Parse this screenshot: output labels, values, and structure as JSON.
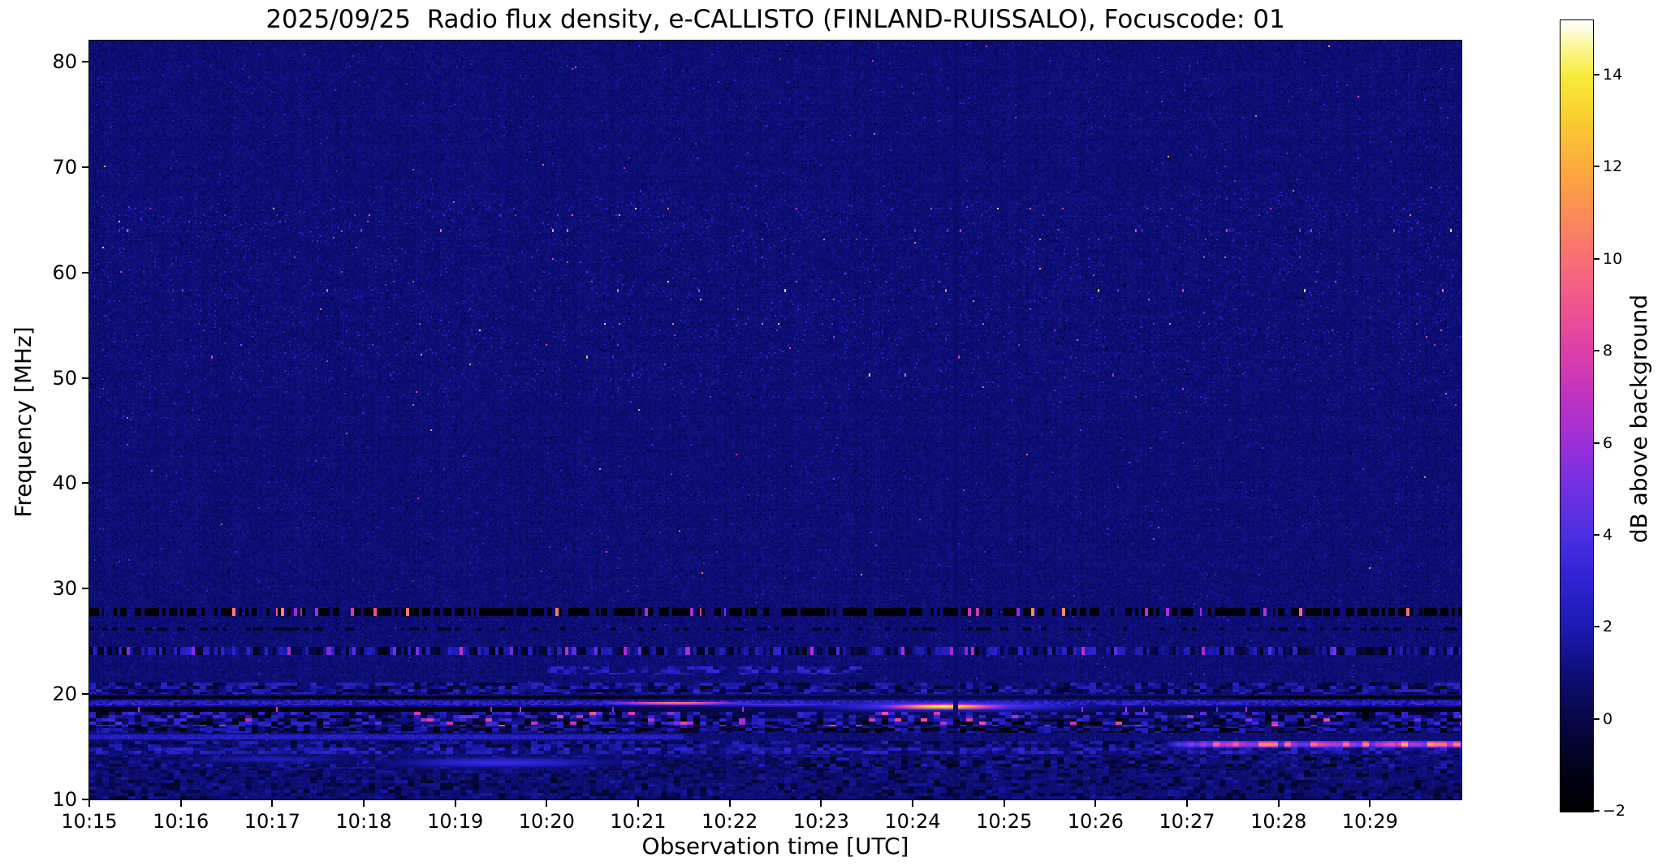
{
  "title": "2025/09/25  Radio flux density, e-CALLISTO (FINLAND-RUISSALO), Focuscode: 01",
  "axes": {
    "xlabel": "Observation time [UTC]",
    "ylabel": "Frequency [MHz]"
  },
  "colorbar": {
    "label": "dB above background",
    "tick_labels": [
      "14",
      "12",
      "10",
      "8",
      "6",
      "4",
      "2",
      "0",
      "−2"
    ],
    "tick_values": [
      14,
      12,
      10,
      8,
      6,
      4,
      2,
      0,
      -2
    ]
  },
  "chart_data": {
    "type": "heatmap",
    "title": "2025/09/25  Radio flux density, e-CALLISTO (FINLAND-RUISSALO), Focuscode: 01",
    "xlabel": "Observation time [UTC]",
    "ylabel": "Frequency [MHz]",
    "x_tick_labels": [
      "10:15",
      "10:16",
      "10:17",
      "10:18",
      "10:19",
      "10:20",
      "10:21",
      "10:22",
      "10:23",
      "10:24",
      "10:25",
      "10:26",
      "10:27",
      "10:28",
      "10:29"
    ],
    "x_range_minutes": [
      0,
      15
    ],
    "y_ticks": [
      80,
      70,
      60,
      50,
      40,
      30,
      20,
      10
    ],
    "y_range_mhz": [
      10,
      82
    ],
    "value_range_db": [
      -2,
      15.2
    ],
    "background_db": 0.9,
    "grid": false,
    "legend": "colorbar-right",
    "seed": 20250925,
    "colormap_stops": [
      [
        0.0,
        "#000000"
      ],
      [
        0.055,
        "#02021c"
      ],
      [
        0.118,
        "#070748"
      ],
      [
        0.175,
        "#0e0e7a"
      ],
      [
        0.233,
        "#1b1bb3"
      ],
      [
        0.3,
        "#3224d6"
      ],
      [
        0.349,
        "#4c2fe3"
      ],
      [
        0.41,
        "#7030e0"
      ],
      [
        0.465,
        "#9c2ed8"
      ],
      [
        0.53,
        "#c333c0"
      ],
      [
        0.581,
        "#dd3fa8"
      ],
      [
        0.64,
        "#ee5590"
      ],
      [
        0.698,
        "#f86f74"
      ],
      [
        0.76,
        "#fb8f55"
      ],
      [
        0.814,
        "#fcab3c"
      ],
      [
        0.87,
        "#f9ca31"
      ],
      [
        0.93,
        "#f7ec38"
      ],
      [
        0.97,
        "#fbf7a0"
      ],
      [
        1.0,
        "#ffffff"
      ]
    ],
    "bands": [
      {
        "kind": "dash_dark",
        "f0": 27.45,
        "f1": 28.2,
        "dash_s": 2.0,
        "gap_p": 0.3,
        "dark_v": -1.7,
        "bright_p": 0.07,
        "bright_lo": 5,
        "bright_hi": 11
      },
      {
        "kind": "dash_dark",
        "f0": 25.95,
        "f1": 26.35,
        "dash_s": 3.0,
        "gap_p": 0.6,
        "dark_v": -0.9,
        "bright_p": 0.01,
        "bright_lo": 3,
        "bright_hi": 5
      },
      {
        "kind": "dash_mix",
        "f0": 23.75,
        "f1": 24.5,
        "dash_s": 2.4,
        "lo": -1.3,
        "hi": 3.0,
        "bright_p": 0.05,
        "bright_lo": 4,
        "bright_hi": 7
      },
      {
        "kind": "mottle",
        "f0": 21.9,
        "f1": 22.65,
        "t0": 5.0,
        "t1": 8.5,
        "vmin": 0.3,
        "vmax": 3.4,
        "p": 0.65
      },
      {
        "kind": "mottle",
        "f0": 19.95,
        "f1": 21.15,
        "vmin": -1.0,
        "vmax": 3.0,
        "p": 0.9
      },
      {
        "kind": "solid",
        "f0": 19.55,
        "f1": 19.9,
        "v": -1.0,
        "jitter": 0.8
      },
      {
        "kind": "line_bright",
        "f0": 18.85,
        "f1": 19.4,
        "base": 1.2,
        "mott": 2.4
      },
      {
        "kind": "solid",
        "f0": 18.35,
        "f1": 18.7,
        "v": -1.5,
        "jitter": 0.5,
        "bright_p": 0.02,
        "bright_lo": 4,
        "bright_hi": 8
      },
      {
        "kind": "mottle_hot",
        "f0": 17.0,
        "f1": 18.3,
        "vmin": -1.8,
        "vmax": 3.6,
        "p": 0.95,
        "hot_p": 0.05,
        "hot_lo": 4,
        "hot_hi": 9
      },
      {
        "kind": "mottle",
        "f0": 16.25,
        "f1": 16.95,
        "vmin": -1.6,
        "vmax": 2.6,
        "p": 0.9
      },
      {
        "kind": "segment_line",
        "f0": 15.7,
        "f1": 16.1,
        "t0": 0,
        "t1": 6.5,
        "v": 2.4,
        "jitter": 1.2
      },
      {
        "kind": "mottle",
        "f0": 14.9,
        "f1": 15.6,
        "vmin": -0.6,
        "vmax": 2.4,
        "p": 0.85
      },
      {
        "kind": "right_bright",
        "f0": 14.95,
        "f1": 15.5,
        "t0": 11.7,
        "t1": 15.05,
        "vlo": 4.5,
        "vhi": 11.5
      },
      {
        "kind": "mottle",
        "f0": 14.25,
        "f1": 14.85,
        "vmin": 0.3,
        "vmax": 3.2,
        "p": 0.9
      },
      {
        "kind": "mottle",
        "f0": 12.9,
        "f1": 14.15,
        "vmin": -1.2,
        "vmax": 2.2,
        "p": 0.7
      },
      {
        "kind": "mottle",
        "f0": 10.0,
        "f1": 12.85,
        "vmin": -0.8,
        "vmax": 1.7,
        "p": 0.55
      }
    ],
    "blobs": [
      {
        "t": 6.4,
        "f": 19.12,
        "st": 0.5,
        "sf": 0.11,
        "amp": 10.8,
        "note": "bright streak ~10:21.4 at 19 MHz"
      },
      {
        "t": 7.5,
        "f": 19.0,
        "st": 0.7,
        "sf": 0.13,
        "amp": 4.0
      },
      {
        "t": 9.35,
        "f": 18.8,
        "st": 0.45,
        "sf": 0.18,
        "amp": 14.6,
        "note": "brightest white-yellow burst ~10:24.3 at 18.8 MHz"
      },
      {
        "t": 9.4,
        "f": 18.85,
        "st": 0.9,
        "sf": 0.32,
        "amp": 5.5
      },
      {
        "t": 4.5,
        "f": 13.5,
        "st": 0.8,
        "sf": 0.35,
        "amp": 3.4,
        "note": "faint blue smear ~10:19.5 at 13.5 MHz"
      },
      {
        "t": 2.0,
        "f": 13.8,
        "st": 0.6,
        "sf": 0.25,
        "amp": 2.2
      }
    ],
    "vlines": [
      {
        "t": 9.47,
        "w": 0.02,
        "v": 0.8
      }
    ],
    "rfi_rows": [
      {
        "f": 66.1,
        "p": 0.03
      },
      {
        "f": 65.5,
        "p": 0.022
      },
      {
        "f": 64.8,
        "p": 0.012
      },
      {
        "f": 64.0,
        "p": 0.02
      },
      {
        "f": 63.2,
        "p": 0.014
      },
      {
        "f": 62.4,
        "p": 0.01
      },
      {
        "f": 61.5,
        "p": 0.007
      },
      {
        "f": 60.1,
        "p": 0.012
      },
      {
        "f": 59.2,
        "p": 0.014
      },
      {
        "f": 58.3,
        "p": 0.01
      },
      {
        "f": 57.4,
        "p": 0.008
      },
      {
        "f": 56.6,
        "p": 0.006
      },
      {
        "f": 55.2,
        "p": 0.02
      },
      {
        "f": 54.6,
        "p": 0.014
      },
      {
        "f": 53.9,
        "p": 0.008
      },
      {
        "f": 53.1,
        "p": 0.01
      },
      {
        "f": 52.0,
        "p": 0.008
      },
      {
        "f": 51.3,
        "p": 0.007
      },
      {
        "f": 50.3,
        "p": 0.005
      },
      {
        "f": 49.0,
        "p": 0.005
      }
    ]
  }
}
